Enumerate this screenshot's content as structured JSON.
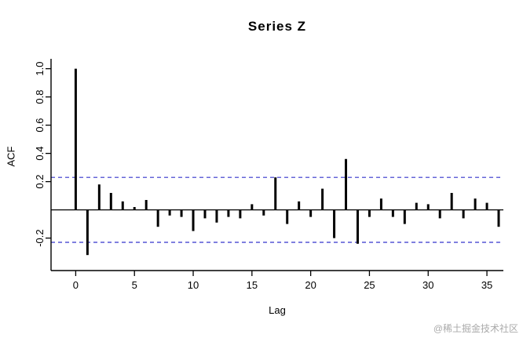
{
  "page": {
    "watermark": "@稀土掘金技术社区"
  },
  "chart_data": {
    "type": "bar",
    "subtype": "acf-stem-plot",
    "title": "Series Z",
    "xlabel": "Lag",
    "ylabel": "ACF",
    "x_ticks": [
      0,
      5,
      10,
      15,
      20,
      25,
      30,
      35
    ],
    "y_ticks": [
      -0.2,
      0.2,
      0.4,
      0.6,
      0.8,
      1.0
    ],
    "y_tick_labels": [
      "-0.2",
      "0.2",
      "0.4",
      "0.6",
      "0.8",
      "1.0"
    ],
    "xlim": [
      -2.1,
      36.4
    ],
    "ylim": [
      -0.43,
      1.07
    ],
    "grid": false,
    "legend": "none",
    "conf_level": 0.23,
    "conf_line_style": "dashed",
    "conf_color": "#3333cc",
    "bar_color": "#000000",
    "axis_color": "#000000",
    "lags": [
      0,
      1,
      2,
      3,
      4,
      5,
      6,
      7,
      8,
      9,
      10,
      11,
      12,
      13,
      14,
      15,
      16,
      17,
      18,
      19,
      20,
      21,
      22,
      23,
      24,
      25,
      26,
      27,
      28,
      29,
      30,
      31,
      32,
      33,
      34,
      35,
      36
    ],
    "values": [
      1.0,
      -0.32,
      0.18,
      0.12,
      0.06,
      0.02,
      0.07,
      -0.12,
      -0.04,
      -0.05,
      -0.15,
      -0.06,
      -0.09,
      -0.05,
      -0.06,
      0.04,
      -0.04,
      0.23,
      -0.1,
      0.06,
      -0.05,
      0.15,
      -0.2,
      0.36,
      -0.24,
      -0.05,
      0.08,
      -0.05,
      -0.1,
      0.05,
      0.04,
      -0.06,
      0.12,
      -0.06,
      0.08,
      0.05,
      -0.12
    ]
  }
}
